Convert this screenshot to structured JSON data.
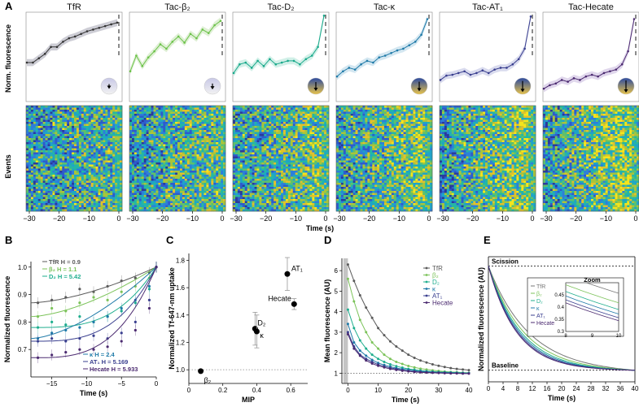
{
  "figure": {
    "panel_letters": [
      "A",
      "B",
      "C",
      "D",
      "E"
    ],
    "panel_a": {
      "ylabel_top": "Norm. fluorescence",
      "ylabel_bottom": "Events",
      "xlabel": "Time (s)",
      "xticks": [
        "−30",
        "−20",
        "−10",
        "0"
      ]
    }
  },
  "chart_data": [
    {
      "id": "A-traces",
      "type": "line",
      "title": "Panel A (top) — normalized fluorescence traces",
      "x": [
        -30,
        -28,
        -26,
        -24,
        -22,
        -20,
        -18,
        -16,
        -14,
        -12,
        -10,
        -8,
        -6,
        -4,
        -2,
        0
      ],
      "xlim": [
        -30,
        0
      ],
      "ylim": [
        0,
        1
      ],
      "series": [
        {
          "name": "TfR",
          "color": "#333333",
          "band": "#c8c8d0",
          "values": [
            0.42,
            0.42,
            0.47,
            0.52,
            0.6,
            0.6,
            0.66,
            0.7,
            0.72,
            0.75,
            0.78,
            0.8,
            0.82,
            0.84,
            0.86,
            0.88
          ]
        },
        {
          "name": "Tac-β₂",
          "color": "#6cc24a",
          "band": "#dbeed0",
          "values": [
            0.32,
            0.5,
            0.38,
            0.48,
            0.55,
            0.63,
            0.58,
            0.66,
            0.72,
            0.65,
            0.75,
            0.7,
            0.8,
            0.76,
            0.85,
            0.9
          ]
        },
        {
          "name": "Tac-D₂",
          "color": "#19a98b",
          "band": "#cdeee6",
          "values": [
            0.3,
            0.4,
            0.42,
            0.36,
            0.44,
            0.38,
            0.46,
            0.4,
            0.42,
            0.44,
            0.44,
            0.4,
            0.46,
            0.5,
            0.6,
            0.96
          ]
        },
        {
          "name": "Tac-κ",
          "color": "#1f7aa8",
          "band": "#cfe4f0",
          "values": [
            0.26,
            0.32,
            0.36,
            0.34,
            0.4,
            0.44,
            0.42,
            0.48,
            0.5,
            0.53,
            0.56,
            0.58,
            0.62,
            0.66,
            0.74,
            0.92
          ]
        },
        {
          "name": "Tac-AT₁",
          "color": "#3a3f8f",
          "band": "#d5d7ec",
          "values": [
            0.22,
            0.27,
            0.28,
            0.3,
            0.32,
            0.28,
            0.3,
            0.33,
            0.3,
            0.34,
            0.36,
            0.36,
            0.4,
            0.46,
            0.58,
            0.95
          ]
        },
        {
          "name": "Tac-Hecate",
          "color": "#4b2a70",
          "band": "#ddd3ea",
          "values": [
            0.12,
            0.16,
            0.18,
            0.22,
            0.2,
            0.24,
            0.22,
            0.26,
            0.28,
            0.26,
            0.3,
            0.32,
            0.34,
            0.4,
            0.55,
            0.92
          ]
        }
      ],
      "arrow_strength": [
        0,
        0.15,
        0.55,
        0.65,
        0.85,
        1.0
      ]
    },
    {
      "id": "B",
      "type": "scatter",
      "xlabel": "Time (s)",
      "ylabel": "Normalized fluorescence",
      "xlim": [
        -18,
        0
      ],
      "ylim": [
        0.6,
        1.02
      ],
      "xticks": [
        -15,
        -10,
        -5,
        0
      ],
      "xtick_labels": [
        "−15",
        "−10",
        "−5",
        "0"
      ],
      "yticks": [
        0.7,
        0.8,
        0.9,
        1.0
      ],
      "ytick_labels": [
        "0.7",
        "0.8",
        "0.9",
        "1.0"
      ],
      "x": [
        -17,
        -15,
        -13,
        -11,
        -9,
        -7,
        -5,
        -3,
        -1,
        0
      ],
      "series": [
        {
          "name": "TfR",
          "H": "0.9",
          "color": "#5a5a5a",
          "values": [
            0.87,
            0.88,
            0.89,
            0.92,
            0.91,
            0.93,
            0.95,
            0.96,
            0.98,
            1.0
          ]
        },
        {
          "name": "β₂",
          "H": "1.1",
          "color": "#7cc35a",
          "values": [
            0.82,
            0.85,
            0.84,
            0.87,
            0.89,
            0.88,
            0.91,
            0.93,
            0.96,
            1.0
          ]
        },
        {
          "name": "D₂",
          "H": "5.42",
          "color": "#1fae8e",
          "values": [
            0.78,
            0.8,
            0.79,
            0.82,
            0.8,
            0.82,
            0.84,
            0.87,
            0.92,
            1.0
          ]
        },
        {
          "name": "κ",
          "H": "2.4",
          "color": "#1f7aa8",
          "values": [
            0.74,
            0.76,
            0.77,
            0.78,
            0.8,
            0.82,
            0.85,
            0.88,
            0.93,
            1.0
          ]
        },
        {
          "name": "AT₁",
          "H": "5.169",
          "color": "#3a3f8f",
          "values": [
            0.73,
            0.74,
            0.73,
            0.74,
            0.75,
            0.74,
            0.76,
            0.8,
            0.88,
            1.0
          ]
        },
        {
          "name": "Hecate",
          "H": "5.933",
          "color": "#4b2a70",
          "values": [
            0.67,
            0.68,
            0.69,
            0.7,
            0.7,
            0.71,
            0.73,
            0.77,
            0.85,
            1.0
          ]
        }
      ],
      "legend_top": [
        "TfR H = 0.9",
        "β₂ H = 1.1",
        "D₂ H = 5.42"
      ],
      "legend_bottom": [
        "κ H = 2.4",
        "AT₁ H = 5.169",
        "Hecate H = 5.933"
      ]
    },
    {
      "id": "C",
      "type": "scatter",
      "xlabel": "MIP",
      "ylabel": "Normalized Tf-647-nm uptake",
      "xlim": [
        0,
        0.7
      ],
      "ylim": [
        0.9,
        1.85
      ],
      "xticks": [
        0,
        0.2,
        0.4,
        0.6
      ],
      "xtick_labels": [
        "0",
        "0.2",
        "0.4",
        "0.6"
      ],
      "yticks": [
        1.0,
        1.2,
        1.4,
        1.6,
        1.8
      ],
      "ytick_labels": [
        "1.0",
        "1.2",
        "1.4",
        "1.6",
        "1.8"
      ],
      "reference_y": 1.0,
      "points": [
        {
          "label": "β₂",
          "x": 0.07,
          "y": 0.99,
          "err": 0.0
        },
        {
          "label": "D₂",
          "x": 0.39,
          "y": 1.3,
          "err": 0.12
        },
        {
          "label": "κ",
          "x": 0.4,
          "y": 1.28,
          "err": 0.12
        },
        {
          "label": "AT₁",
          "x": 0.58,
          "y": 1.7,
          "err": 0.12
        },
        {
          "label": "Hecate",
          "x": 0.62,
          "y": 1.48,
          "err": 0.04
        }
      ]
    },
    {
      "id": "D",
      "type": "line",
      "xlabel": "Time (s)",
      "ylabel": "Mean fluorescence (AU)",
      "xlim": [
        -2,
        40
      ],
      "ylim": [
        0.5,
        6.6
      ],
      "xticks": [
        0,
        10,
        20,
        30,
        40
      ],
      "xtick_labels": [
        "0",
        "10",
        "20",
        "30",
        "40"
      ],
      "yticks": [
        1,
        2,
        3,
        4,
        5,
        6
      ],
      "ytick_labels": [
        "1",
        "2",
        "3",
        "4",
        "5",
        "6"
      ],
      "reference_y": 1.0,
      "shaded_region": [
        -1.5,
        0
      ],
      "x": [
        0,
        2,
        4,
        6,
        8,
        10,
        12,
        14,
        16,
        18,
        20,
        22,
        24,
        26,
        28,
        30,
        32,
        34,
        36,
        38,
        40
      ],
      "series": [
        {
          "name": "TfR",
          "color": "#5a5a5a",
          "values": [
            6.3,
            5.5,
            4.8,
            4.2,
            3.7,
            3.2,
            2.85,
            2.55,
            2.3,
            2.1,
            1.9,
            1.75,
            1.62,
            1.52,
            1.43,
            1.36,
            1.3,
            1.25,
            1.21,
            1.18,
            1.15
          ]
        },
        {
          "name": "β₂",
          "color": "#7cc35a",
          "values": [
            5.6,
            4.5,
            3.6,
            3.0,
            2.5,
            2.2,
            1.9,
            1.7,
            1.55,
            1.45,
            1.35,
            1.28,
            1.22,
            1.18,
            1.14,
            1.11,
            1.08,
            1.06,
            1.05,
            1.03,
            1.02
          ]
        },
        {
          "name": "D₂",
          "color": "#1fae8e",
          "values": [
            4.1,
            3.2,
            2.6,
            2.2,
            1.9,
            1.7,
            1.55,
            1.43,
            1.34,
            1.27,
            1.21,
            1.17,
            1.13,
            1.1,
            1.08,
            1.06,
            1.05,
            1.04,
            1.03,
            1.02,
            1.01
          ]
        },
        {
          "name": "κ",
          "color": "#1f7aa8",
          "values": [
            3.4,
            2.5,
            2.1,
            1.85,
            1.65,
            1.5,
            1.4,
            1.32,
            1.25,
            1.2,
            1.16,
            1.12,
            1.09,
            1.07,
            1.05,
            1.04,
            1.03,
            1.02,
            1.01,
            1.0,
            1.0
          ]
        },
        {
          "name": "AT₁",
          "color": "#3a3f8f",
          "values": [
            3.0,
            2.3,
            1.9,
            1.7,
            1.55,
            1.42,
            1.33,
            1.26,
            1.2,
            1.15,
            1.11,
            1.08,
            1.06,
            1.04,
            1.03,
            1.02,
            1.01,
            1.0,
            1.0,
            0.99,
            0.99
          ]
        },
        {
          "name": "Hecate",
          "color": "#4b2a70",
          "values": [
            2.9,
            2.2,
            1.85,
            1.62,
            1.47,
            1.36,
            1.28,
            1.21,
            1.16,
            1.12,
            1.09,
            1.06,
            1.04,
            1.03,
            1.02,
            1.01,
            1.0,
            0.99,
            0.99,
            0.98,
            0.98
          ]
        }
      ]
    },
    {
      "id": "E",
      "type": "line",
      "xlabel": "Time (s)",
      "ylabel": "Normalized fluorescence (AU)",
      "xlim": [
        0,
        40
      ],
      "ylim": [
        0,
        1.08
      ],
      "xticks": [
        0,
        4,
        8,
        12,
        16,
        20,
        24,
        28,
        32,
        36,
        40
      ],
      "xtick_labels": [
        "0",
        "4",
        "8",
        "12",
        "16",
        "20",
        "24",
        "28",
        "32",
        "36",
        "40"
      ],
      "scission_label": "Scission",
      "baseline_label": "Baseline",
      "series": [
        {
          "name": "TfR",
          "color": "#777777",
          "tau": 11.0
        },
        {
          "name": "β₂",
          "color": "#7cc35a",
          "tau": 9.7
        },
        {
          "name": "D₂",
          "color": "#1fae8e",
          "tau": 8.9
        },
        {
          "name": "κ",
          "color": "#1f7aa8",
          "tau": 8.4
        },
        {
          "name": "AT₁",
          "color": "#3a3f8f",
          "tau": 8.0
        },
        {
          "name": "Hecate",
          "color": "#4b2a70",
          "tau": 7.7
        }
      ],
      "inset": {
        "title": "Zoom",
        "xlim": [
          8,
          10
        ],
        "ylim": [
          0.3,
          0.5
        ],
        "xticks": [
          8,
          9,
          10
        ],
        "xtick_labels": [
          "8",
          "9",
          "10"
        ],
        "yticks": [
          0.3,
          0.35,
          0.4,
          0.45
        ],
        "ytick_labels": [
          "0.3",
          "0.35",
          "0.4",
          "0.45"
        ]
      }
    }
  ]
}
